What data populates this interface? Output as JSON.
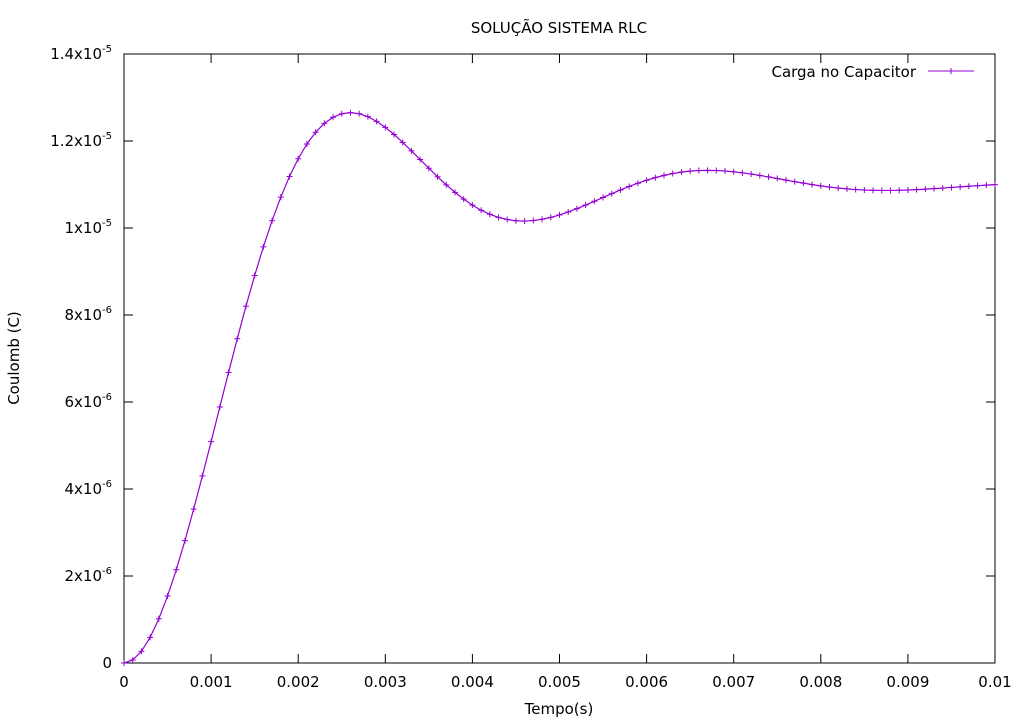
{
  "chart_data": {
    "type": "line",
    "title": "SOLUÇÃO SISTEMA RLC",
    "xlabel": "Tempo(s)",
    "ylabel": "Coulomb (C)",
    "xlim": [
      0,
      0.01
    ],
    "ylim": [
      0,
      1.4e-05
    ],
    "grid": false,
    "legend_position": "top-right",
    "x_ticks": [
      {
        "value": 0,
        "label": "0"
      },
      {
        "value": 0.001,
        "label": "0.001"
      },
      {
        "value": 0.002,
        "label": "0.002"
      },
      {
        "value": 0.003,
        "label": "0.003"
      },
      {
        "value": 0.004,
        "label": "0.004"
      },
      {
        "value": 0.005,
        "label": "0.005"
      },
      {
        "value": 0.006,
        "label": "0.006"
      },
      {
        "value": 0.007,
        "label": "0.007"
      },
      {
        "value": 0.008,
        "label": "0.008"
      },
      {
        "value": 0.009,
        "label": "0.009"
      },
      {
        "value": 0.01,
        "label": "0.01"
      }
    ],
    "y_ticks": [
      {
        "value": 0,
        "mantissa": "0",
        "exponent": ""
      },
      {
        "value": 2e-06,
        "mantissa": "2x10",
        "exponent": "-6"
      },
      {
        "value": 4e-06,
        "mantissa": "4x10",
        "exponent": "-6"
      },
      {
        "value": 6e-06,
        "mantissa": "6x10",
        "exponent": "-6"
      },
      {
        "value": 8e-06,
        "mantissa": "8x10",
        "exponent": "-6"
      },
      {
        "value": 1e-05,
        "mantissa": "1x10",
        "exponent": "-5"
      },
      {
        "value": 1.2e-05,
        "mantissa": "1.2x10",
        "exponent": "-5"
      },
      {
        "value": 1.4e-05,
        "mantissa": "1.4x10",
        "exponent": "-5"
      }
    ],
    "series": [
      {
        "name": "Carga no Capacitor",
        "color": "#9400d3",
        "marker": "plus",
        "x": [
          0,
          0.0001,
          0.0002,
          0.0003,
          0.0004,
          0.0005,
          0.0006,
          0.0007,
          0.0008,
          0.0009,
          0.001,
          0.0011,
          0.0012,
          0.0013,
          0.0014,
          0.0015,
          0.0016,
          0.0017,
          0.0018,
          0.0019,
          0.002,
          0.0021,
          0.0022,
          0.0023,
          0.0024,
          0.0025,
          0.0026,
          0.0027,
          0.0028,
          0.0029,
          0.003,
          0.0031,
          0.0032,
          0.0033,
          0.0034,
          0.0035,
          0.0036,
          0.0037,
          0.0038,
          0.0039,
          0.004,
          0.0041,
          0.0042,
          0.0043,
          0.0044,
          0.0045,
          0.0046,
          0.0047,
          0.0048,
          0.0049,
          0.005,
          0.0051,
          0.0052,
          0.0053,
          0.0054,
          0.0055,
          0.0056,
          0.0057,
          0.0058,
          0.0059,
          0.006,
          0.0061,
          0.0062,
          0.0063,
          0.0064,
          0.0065,
          0.0066,
          0.0067,
          0.0068,
          0.0069,
          0.007,
          0.0071,
          0.0072,
          0.0073,
          0.0074,
          0.0075,
          0.0076,
          0.0077,
          0.0078,
          0.0079,
          0.008,
          0.0081,
          0.0082,
          0.0083,
          0.0084,
          0.0085,
          0.0086,
          0.0087,
          0.0088,
          0.0089,
          0.009,
          0.0091,
          0.0092,
          0.0093,
          0.0094,
          0.0095,
          0.0096,
          0.0097,
          0.0098,
          0.0099,
          0.01
        ],
        "y": [
          0,
          6.9e-08,
          2.69e-07,
          5.89e-07,
          1.017e-06,
          1.539e-06,
          2.143e-06,
          2.814e-06,
          3.538e-06,
          4.301e-06,
          5.088e-06,
          5.885e-06,
          6.677e-06,
          7.453e-06,
          8.2e-06,
          8.907e-06,
          9.565e-06,
          1.0168e-05,
          1.0709e-05,
          1.1184e-05,
          1.1592e-05,
          1.1931e-05,
          1.2201e-05,
          1.2405e-05,
          1.2546e-05,
          1.2627e-05,
          1.2652e-05,
          1.2628e-05,
          1.2559e-05,
          1.2452e-05,
          1.2314e-05,
          1.215e-05,
          1.1968e-05,
          1.1774e-05,
          1.1574e-05,
          1.1374e-05,
          1.1178e-05,
          1.0992e-05,
          1.0819e-05,
          1.0663e-05,
          1.0526e-05,
          1.0409e-05,
          1.0315e-05,
          1.0244e-05,
          1.0194e-05,
          1.0167e-05,
          1.0159e-05,
          1.0171e-05,
          1.02e-05,
          1.0244e-05,
          1.0301e-05,
          1.0369e-05,
          1.0445e-05,
          1.0528e-05,
          1.0614e-05,
          1.0702e-05,
          1.0789e-05,
          1.0874e-05,
          1.0955e-05,
          1.103e-05,
          1.1098e-05,
          1.1158e-05,
          1.121e-05,
          1.1252e-05,
          1.1284e-05,
          1.1307e-05,
          1.1321e-05,
          1.1325e-05,
          1.1321e-05,
          1.131e-05,
          1.1292e-05,
          1.1268e-05,
          1.124e-05,
          1.1208e-05,
          1.1174e-05,
          1.1138e-05,
          1.1101e-05,
          1.1065e-05,
          1.1031e-05,
          1.0998e-05,
          1.0968e-05,
          1.0941e-05,
          1.0918e-05,
          1.0899e-05,
          1.0884e-05,
          1.0873e-05,
          1.0866e-05,
          1.0863e-05,
          1.0863e-05,
          1.0867e-05,
          1.0873e-05,
          1.0882e-05,
          1.0893e-05,
          1.0905e-05,
          1.0918e-05,
          1.0932e-05,
          1.0946e-05,
          1.096e-05,
          1.0973e-05,
          1.0986e-05,
          1.0998e-05
        ]
      }
    ]
  }
}
